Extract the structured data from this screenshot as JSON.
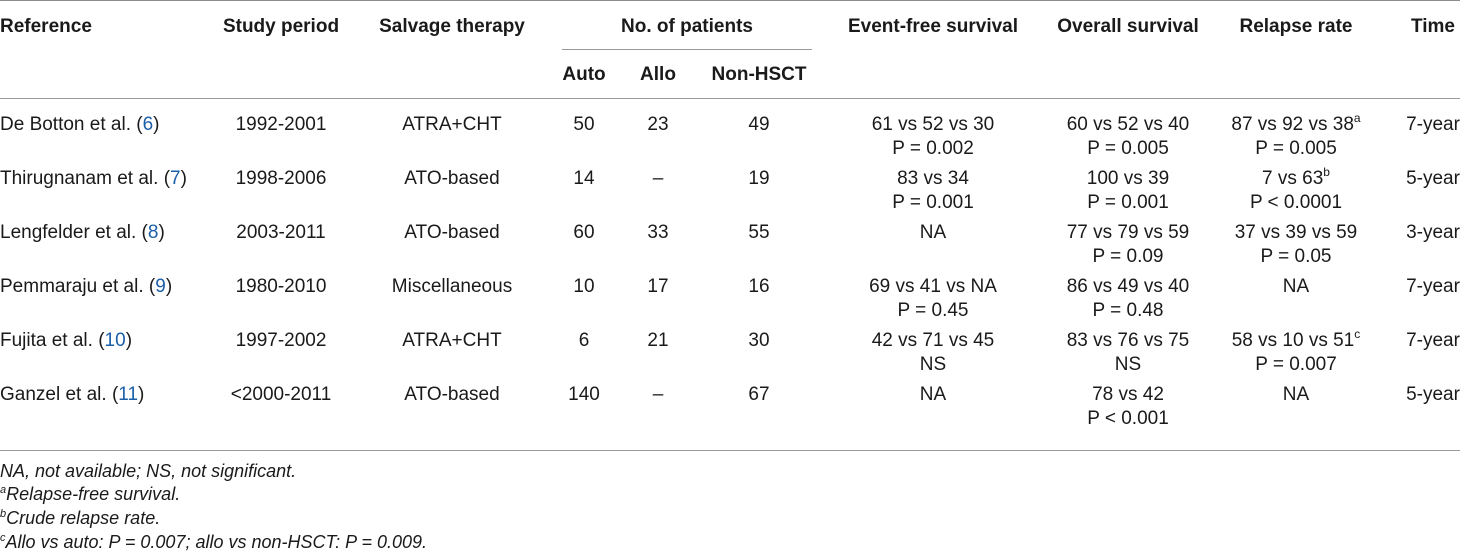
{
  "headers": {
    "reference": "Reference",
    "study_period": "Study period",
    "salvage_therapy": "Salvage therapy",
    "num_patients": "No. of patients",
    "auto": "Auto",
    "allo": "Allo",
    "non_hsct": "Non-HSCT",
    "efs": "Event-free survival",
    "os": "Overall survival",
    "relapse": "Relapse rate",
    "time": "Time"
  },
  "rows": [
    {
      "ref_name": "De Botton et al. (",
      "ref_num": "6",
      "ref_close": ")",
      "period": "1992-2001",
      "therapy": "ATRA+CHT",
      "auto": "50",
      "allo": "23",
      "non": "49",
      "efs1": "61 vs 52 vs 30",
      "efs2": "P = 0.002",
      "os1": "60 vs 52 vs 40",
      "os2": "P = 0.005",
      "rel1": "87 vs 92 vs 38",
      "rel_sup": "a",
      "rel2": "P = 0.005",
      "time": "7-year"
    },
    {
      "ref_name": "Thirugnanam et al. (",
      "ref_num": "7",
      "ref_close": ")",
      "period": "1998-2006",
      "therapy": "ATO-based",
      "auto": "14",
      "allo": "–",
      "non": "19",
      "efs1": "83 vs 34",
      "efs2": "P = 0.001",
      "os1": "100 vs 39",
      "os2": "P = 0.001",
      "rel1": "7 vs 63",
      "rel_sup": "b",
      "rel2": "P < 0.0001",
      "time": "5-year"
    },
    {
      "ref_name": "Lengfelder et al. (",
      "ref_num": "8",
      "ref_close": ")",
      "period": "2003-2011",
      "therapy": "ATO-based",
      "auto": "60",
      "allo": "33",
      "non": "55",
      "efs1": "NA",
      "efs2": "",
      "os1": "77 vs 79 vs 59",
      "os2": "P = 0.09",
      "rel1": "37 vs 39 vs 59",
      "rel_sup": "",
      "rel2": "P = 0.05",
      "time": "3-year"
    },
    {
      "ref_name": "Pemmaraju et al. (",
      "ref_num": "9",
      "ref_close": ")",
      "period": "1980-2010",
      "therapy": "Miscellaneous",
      "auto": "10",
      "allo": "17",
      "non": "16",
      "efs1": "69 vs 41 vs NA",
      "efs2": "P = 0.45",
      "os1": "86 vs 49 vs 40",
      "os2": "P = 0.48",
      "rel1": "NA",
      "rel_sup": "",
      "rel2": "",
      "time": "7-year"
    },
    {
      "ref_name": "Fujita et al. (",
      "ref_num": "10",
      "ref_close": ")",
      "period": "1997-2002",
      "therapy": "ATRA+CHT",
      "auto": "6",
      "allo": "21",
      "non": "30",
      "efs1": "42 vs 71 vs 45",
      "efs2": "NS",
      "os1": "83 vs 76 vs 75",
      "os2": "NS",
      "rel1": "58 vs 10 vs 51",
      "rel_sup": "c",
      "rel2": "P = 0.007",
      "time": "7-year"
    },
    {
      "ref_name": "Ganzel et al. (",
      "ref_num": "11",
      "ref_close": ")",
      "period": "<2000-2011",
      "therapy": "ATO-based",
      "auto": "140",
      "allo": "–",
      "non": "67",
      "efs1": "NA",
      "efs2": "",
      "os1": "78 vs 42",
      "os2": "P < 0.001",
      "rel1": "NA",
      "rel_sup": "",
      "rel2": "",
      "time": "5-year"
    }
  ],
  "footnotes": {
    "f0": "NA, not available; NS, not significant.",
    "f1_sup": "a",
    "f1": "Relapse-free survival.",
    "f2_sup": "b",
    "f2": "Crude relapse rate.",
    "f3_sup": "c",
    "f3": "Allo vs auto: P = 0.007; allo vs non-HSCT: P = 0.009."
  }
}
